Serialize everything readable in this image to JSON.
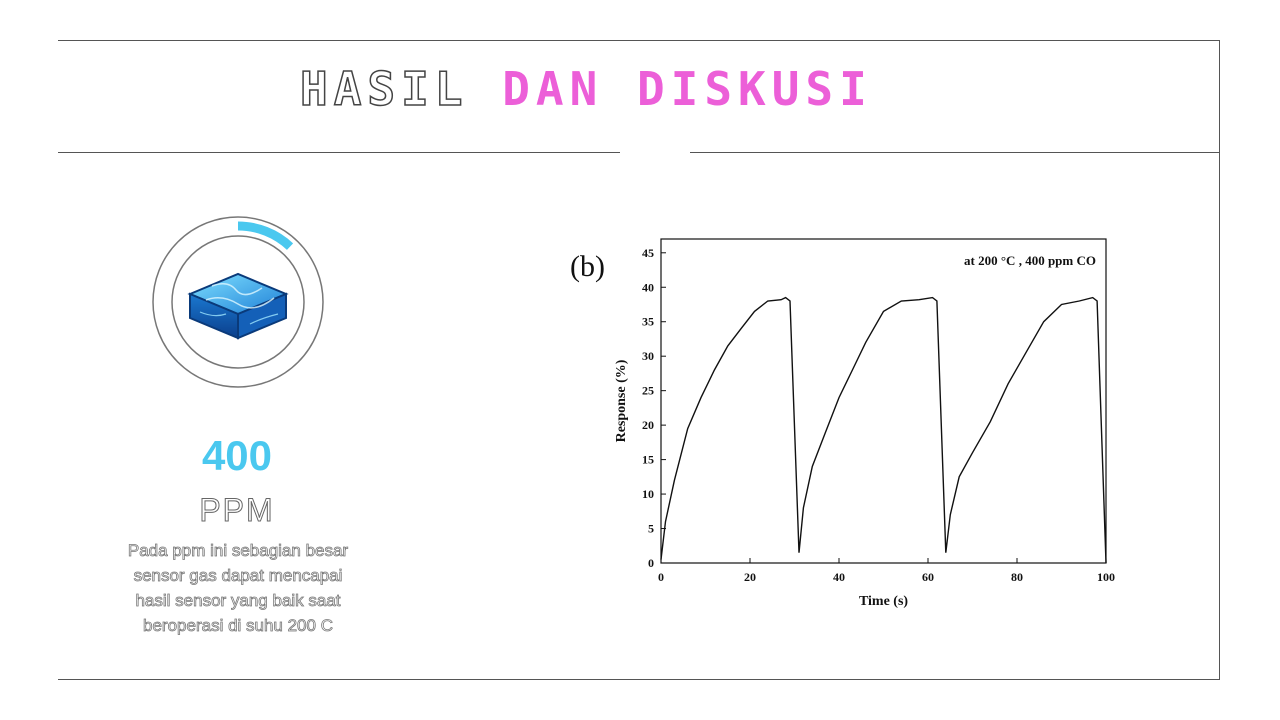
{
  "slide": {
    "title_part1": "HASIL",
    "title_part2": "DAN DISKUSI",
    "accent_color": "#ec5fd8",
    "stat_color": "#4ac8ef"
  },
  "left_panel": {
    "icon": "blue-water-cube-icon",
    "gauge_fraction": 0.12,
    "value": "400",
    "unit": "PPM",
    "description": "Pada ppm ini sebagian besar sensor gas dapat mencapai hasil sensor yang baik saat beroperasi di suhu 200 C"
  },
  "chart_data": {
    "type": "line",
    "panel_label": "(b)",
    "annotation": "at 200 °C , 400 ppm CO",
    "xlabel": "Time (s)",
    "ylabel": "Response (%)",
    "xlim": [
      0,
      100
    ],
    "ylim": [
      0,
      47
    ],
    "xticks": [
      0,
      20,
      40,
      60,
      80,
      100
    ],
    "yticks": [
      0,
      5,
      10,
      15,
      20,
      25,
      30,
      35,
      40,
      45
    ],
    "grid": false,
    "series": [
      {
        "points": [
          [
            0,
            0.5
          ],
          [
            1,
            6
          ],
          [
            3,
            12
          ],
          [
            6,
            19.5
          ],
          [
            9,
            24
          ],
          [
            12,
            28
          ],
          [
            15,
            31.5
          ],
          [
            18,
            34
          ],
          [
            21,
            36.5
          ],
          [
            24,
            38
          ],
          [
            27,
            38.2
          ],
          [
            28,
            38.5
          ],
          [
            29,
            38
          ],
          [
            31,
            1.5
          ],
          [
            32,
            8
          ],
          [
            34,
            14
          ],
          [
            37,
            19
          ],
          [
            40,
            24
          ],
          [
            43,
            28
          ],
          [
            46,
            32
          ],
          [
            50,
            36.5
          ],
          [
            54,
            38
          ],
          [
            58,
            38.2
          ],
          [
            61,
            38.5
          ],
          [
            62,
            38
          ],
          [
            64,
            1.5
          ],
          [
            65,
            7
          ],
          [
            67,
            12.5
          ],
          [
            70,
            16
          ],
          [
            74,
            20.5
          ],
          [
            78,
            26
          ],
          [
            82,
            30.5
          ],
          [
            86,
            35
          ],
          [
            90,
            37.5
          ],
          [
            94,
            38
          ],
          [
            97,
            38.5
          ],
          [
            98,
            38
          ],
          [
            100,
            0
          ]
        ]
      }
    ]
  }
}
